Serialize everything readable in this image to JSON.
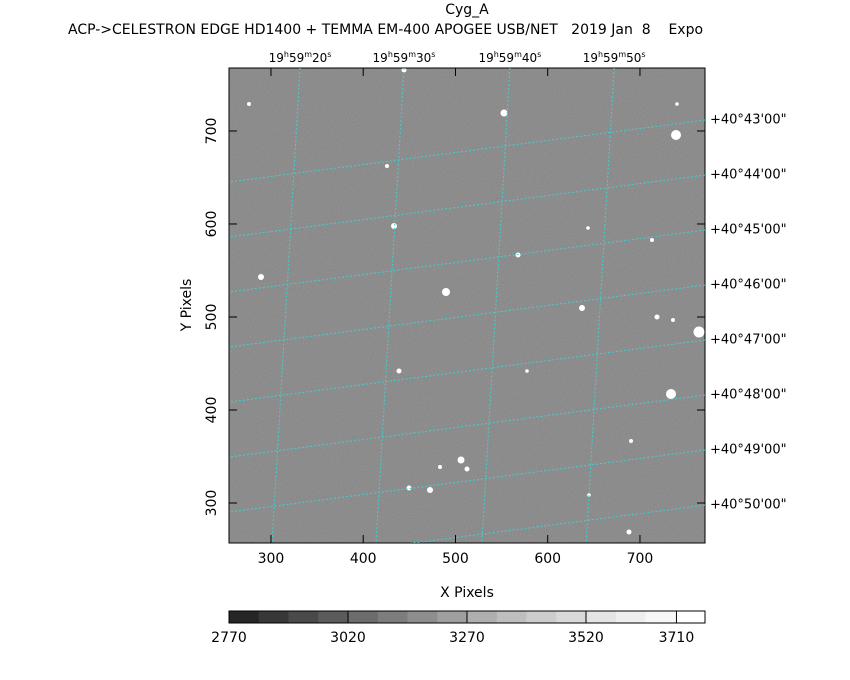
{
  "chart_data": {
    "type": "image",
    "title": "Cyg_A",
    "subtitle": "ACP->CELESTRON EDGE HD1400 + TEMMA EM-400 APOGEE USB/NET   2019 Jan  8    Expo",
    "x_label": "X Pixels",
    "y_label": "Y Pixels",
    "xlim": [
      254.5,
      770.5
    ],
    "ylim": [
      257,
      767.7
    ],
    "xticks": [
      300,
      400,
      500,
      600,
      700
    ],
    "yticks": [
      300,
      400,
      500,
      600,
      700
    ],
    "top_ticks": [
      {
        "value": 331.5,
        "label": "19h59m20s"
      },
      {
        "value": 444.2,
        "label": "19h59m30s"
      },
      {
        "value": 559,
        "label": "19h59m40s"
      },
      {
        "value": 672,
        "label": "19h59m50s"
      }
    ],
    "right_ticks": [
      {
        "value": 711.8,
        "label": "+40°43'00\""
      },
      {
        "value": 652.6,
        "label": "+40°44'00\""
      },
      {
        "value": 593.5,
        "label": "+40°45'00\""
      },
      {
        "value": 534.4,
        "label": "+40°46'00\""
      },
      {
        "value": 475.2,
        "label": "+40°47'00\""
      },
      {
        "value": 416.1,
        "label": "+40°48'00\""
      },
      {
        "value": 357,
        "label": "+40°49'00\""
      },
      {
        "value": 297.8,
        "label": "+40°50'00\""
      }
    ],
    "grid": true,
    "grid_color": "#40d0d0",
    "colorbar": {
      "lim": [
        2770,
        3770
      ],
      "ticks": [
        2770,
        3020,
        3270,
        3520,
        3710
      ],
      "colors": [
        "#262626",
        "#383838",
        "#4a4a4a",
        "#5b5b5b",
        "#6c6c6c",
        "#7d7d7d",
        "#8e8e8e",
        "#9f9f9f",
        "#afafaf",
        "#bebebe",
        "#cccccc",
        "#d9d9d9",
        "#e4e4e4",
        "#eeeeee",
        "#f7f7f7",
        "#ffffff"
      ]
    }
  }
}
